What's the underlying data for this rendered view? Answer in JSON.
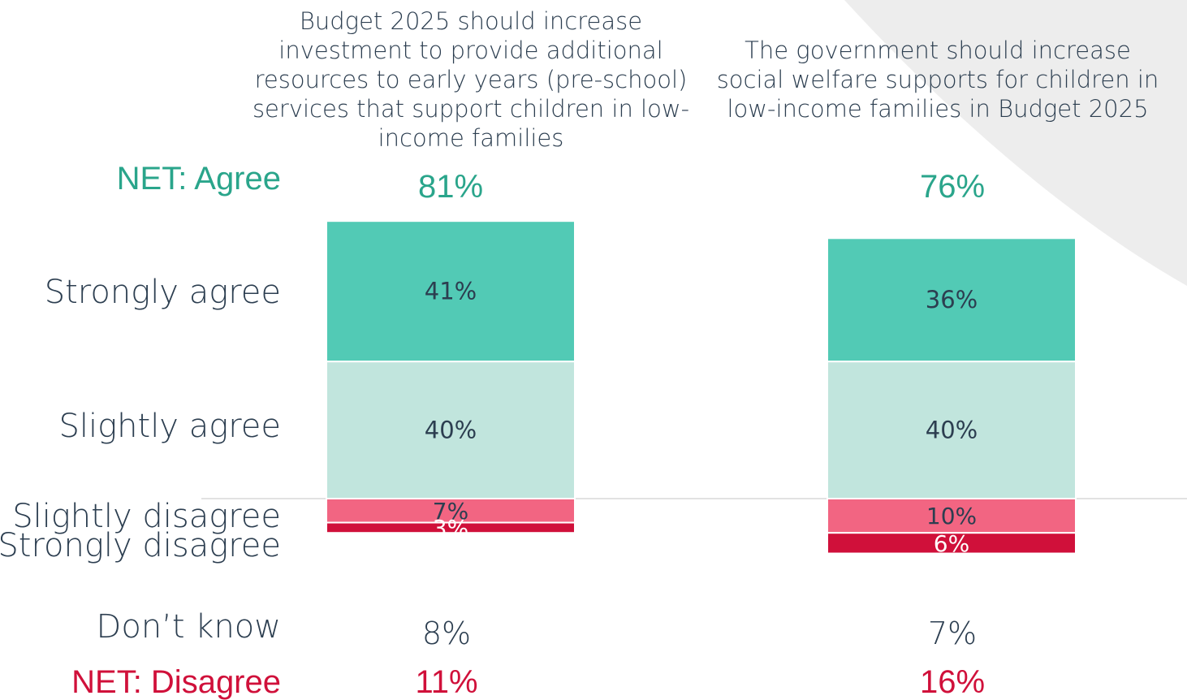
{
  "colors": {
    "agree_net": "#2aa58b",
    "disagree_net": "#d0103a",
    "strongly_agree": "#52cab5",
    "slightly_agree": "#c1e5dd",
    "slightly_disagree": "#f26582",
    "strongly_disagree": "#d0103a",
    "text": "#2c3e50",
    "background_shape": "#ededed"
  },
  "row_labels": {
    "net_agree": "NET: Agree",
    "strongly_agree": "Strongly agree",
    "slightly_agree": "Slightly agree",
    "slightly_disagree": "Slightly disagree",
    "strongly_disagree": "Strongly disagree",
    "dont_know": "Don’t know",
    "net_disagree": "NET: Disagree"
  },
  "chart_data": {
    "type": "bar",
    "stacked": true,
    "categories": [
      "Budget 2025 should increase\ninvestment to provide additional\nresources to early years (pre-school)\nservices that support children in low-\nincome families",
      "The government should increase\nsocial welfare supports for children in\nlow-income families in Budget 2025"
    ],
    "series": [
      {
        "name": "Strongly agree",
        "values": [
          41,
          36
        ],
        "labels": [
          "41%",
          "36%"
        ]
      },
      {
        "name": "Slightly agree",
        "values": [
          40,
          40
        ],
        "labels": [
          "40%",
          "40%"
        ]
      },
      {
        "name": "Slightly disagree",
        "values": [
          7,
          10
        ],
        "labels": [
          "7%",
          "10%"
        ]
      },
      {
        "name": "Strongly disagree",
        "values": [
          3,
          6
        ],
        "labels": [
          "3%",
          "6%"
        ]
      }
    ],
    "net_agree": [
      "81%",
      "76%"
    ],
    "dont_know": [
      "8%",
      "7%"
    ],
    "net_disagree": [
      "11%",
      "16%"
    ],
    "baseline": "agree above, disagree below",
    "legend": "none"
  }
}
